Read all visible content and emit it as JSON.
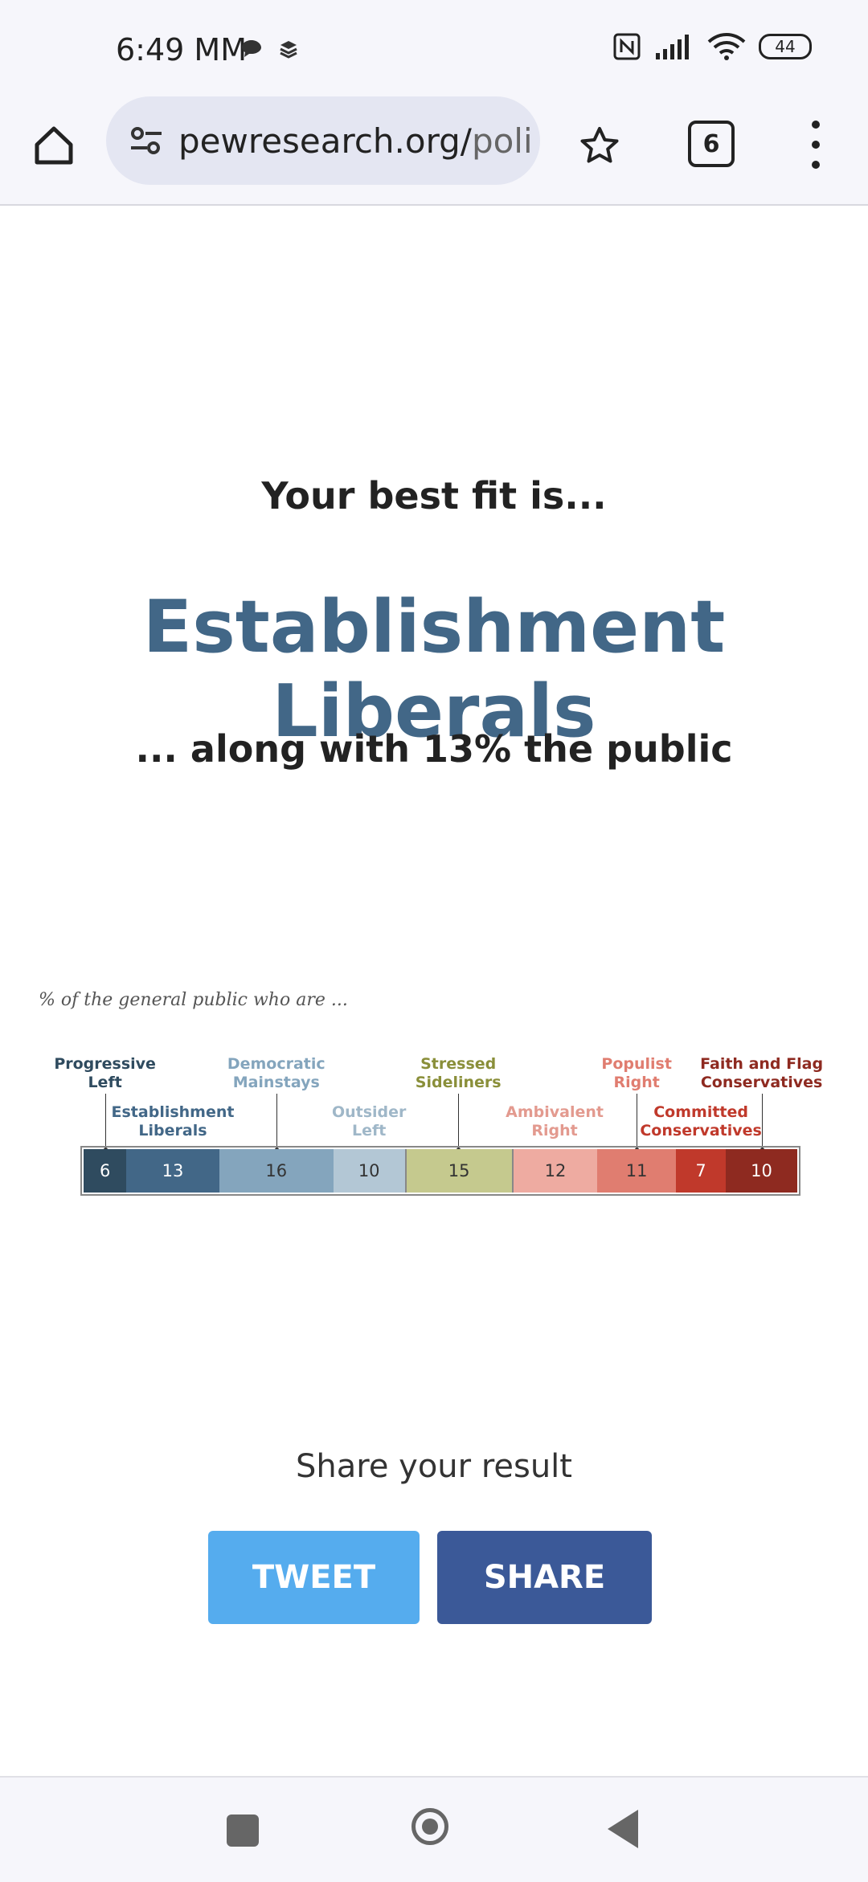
{
  "status_bar": {
    "time": "6:49 MM",
    "battery": "44"
  },
  "browser": {
    "url_domain": "pewresearch.org/",
    "url_path": "polit",
    "tab_count": "6"
  },
  "result": {
    "intro": "Your best fit is...",
    "typology_name": "Establishment Liberals",
    "share_text": "... along with 13% the public"
  },
  "chart_data": {
    "type": "bar",
    "title": "% of the general public who are ...",
    "orientation": "stacked-horizontal",
    "categories": [
      "Progressive Left",
      "Establishment Liberals",
      "Democratic Mainstays",
      "Outsider Left",
      "Stressed Sideliners",
      "Ambivalent Right",
      "Populist Right",
      "Committed Conservatives",
      "Faith and Flag Conservatives"
    ],
    "values": [
      6,
      13,
      16,
      10,
      15,
      12,
      11,
      7,
      10
    ],
    "label_lines": [
      [
        "Progressive",
        "Left"
      ],
      [
        "Establishment",
        "Liberals"
      ],
      [
        "Democratic",
        "Mainstays"
      ],
      [
        "Outsider",
        "Left"
      ],
      [
        "Stressed",
        "Sideliners"
      ],
      [
        "Ambivalent",
        "Right"
      ],
      [
        "Populist",
        "Right"
      ],
      [
        "Committed",
        "Conservatives"
      ],
      [
        "Faith and Flag",
        "Conservatives"
      ]
    ],
    "colors": [
      "#2f4b5f",
      "#426787",
      "#84a5bd",
      "#b3c7d5",
      "#c5c98e",
      "#eeaba1",
      "#e07d70",
      "#c0392b",
      "#8e2a20"
    ],
    "label_colors": [
      "#2f4b5f",
      "#426787",
      "#84a5bd",
      "#9fb7c8",
      "#8a8f3a",
      "#e39a8f",
      "#e07d70",
      "#c0392b",
      "#8e2a20"
    ],
    "value_text_colors": [
      "#ffffff",
      "#ffffff",
      "#333333",
      "#333333",
      "#333333",
      "#333333",
      "#333333",
      "#ffffff",
      "#ffffff"
    ],
    "label_rows": [
      "top",
      "bottom",
      "top",
      "bottom",
      "top",
      "bottom",
      "top",
      "bottom",
      "top"
    ],
    "xlim": [
      0,
      100
    ]
  },
  "share": {
    "title": "Share your result",
    "tweet_label": "TWEET",
    "share_label": "SHARE"
  }
}
